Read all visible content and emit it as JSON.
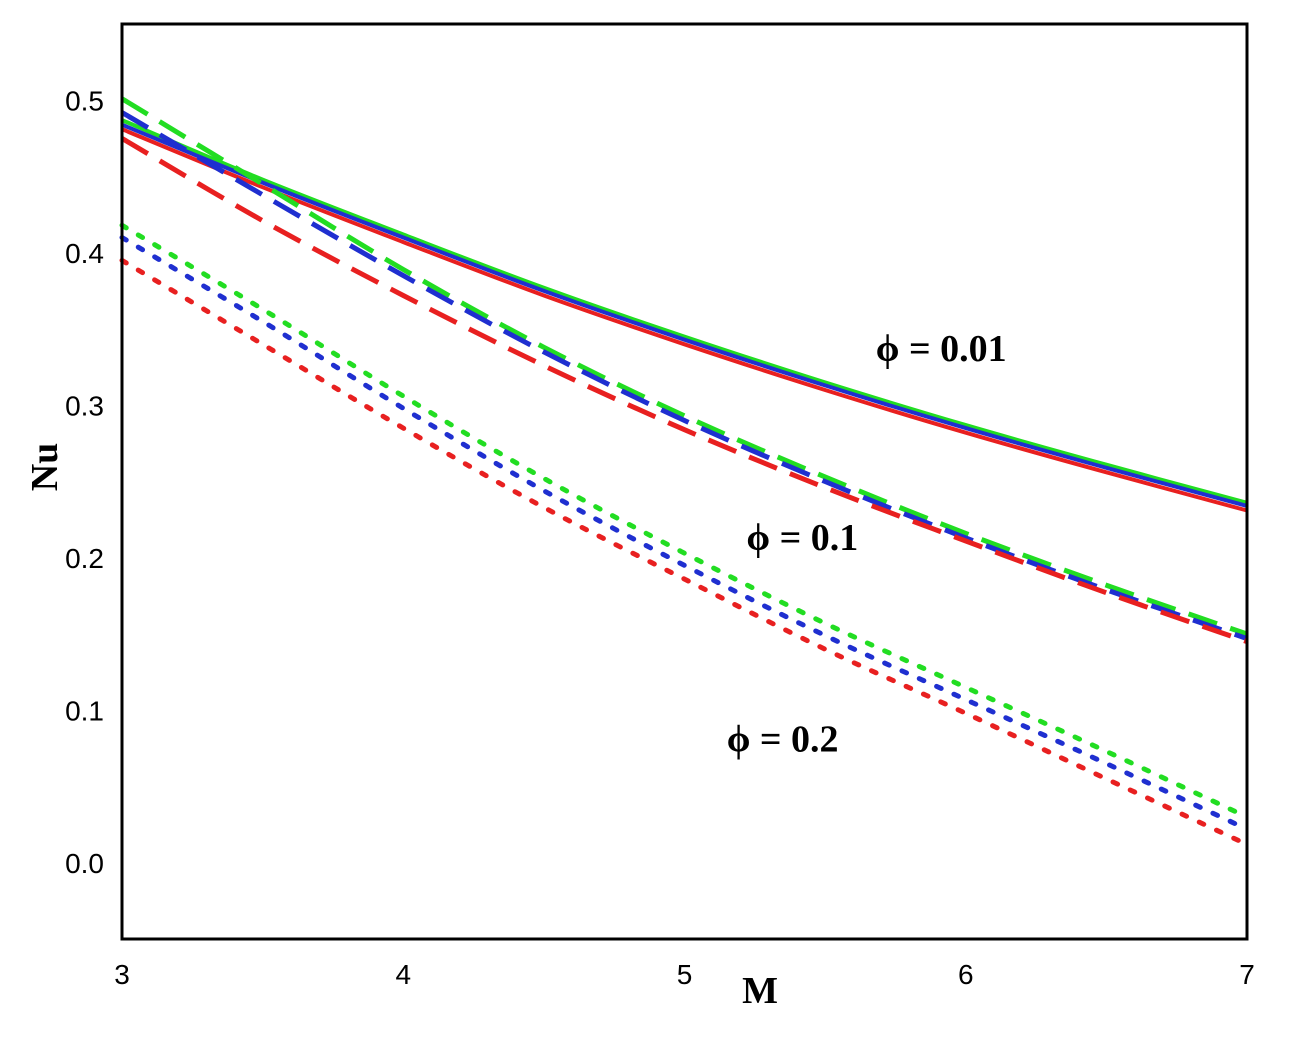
{
  "chart_data": {
    "type": "line",
    "title": "",
    "xlabel": "M",
    "ylabel": "Nu",
    "xlim": [
      3,
      7
    ],
    "ylim": [
      -0.05,
      0.55
    ],
    "x_ticks": [
      "3",
      "4",
      "5",
      "6",
      "7"
    ],
    "y_ticks": [
      "0.0",
      "0.1",
      "0.2",
      "0.3",
      "0.4",
      "0.5"
    ],
    "grid": false,
    "legend": "none",
    "x": [
      3,
      3.5,
      4,
      4.5,
      5,
      5.5,
      6,
      6.5,
      7
    ],
    "series": [
      {
        "group": "0.01",
        "style": "solid",
        "color": "#22dd22",
        "values": [
          0.487,
          0.448,
          0.412,
          0.377,
          0.345,
          0.315,
          0.287,
          0.261,
          0.236
        ]
      },
      {
        "group": "0.01",
        "style": "solid",
        "color": "#1f2fd0",
        "values": [
          0.484,
          0.446,
          0.41,
          0.375,
          0.343,
          0.313,
          0.285,
          0.259,
          0.234
        ]
      },
      {
        "group": "0.01",
        "style": "solid",
        "color": "#e82020",
        "values": [
          0.481,
          0.443,
          0.407,
          0.372,
          0.34,
          0.31,
          0.282,
          0.256,
          0.231
        ]
      },
      {
        "group": "0.1",
        "style": "dashed",
        "color": "#22dd22",
        "values": [
          0.501,
          0.445,
          0.389,
          0.338,
          0.293,
          0.253,
          0.216,
          0.182,
          0.15
        ]
      },
      {
        "group": "0.1",
        "style": "dashed",
        "color": "#1f2fd0",
        "values": [
          0.492,
          0.438,
          0.385,
          0.335,
          0.29,
          0.25,
          0.213,
          0.179,
          0.147
        ]
      },
      {
        "group": "0.1",
        "style": "dashed",
        "color": "#e82020",
        "values": [
          0.475,
          0.421,
          0.372,
          0.326,
          0.284,
          0.246,
          0.211,
          0.177,
          0.145
        ]
      },
      {
        "group": "0.2",
        "style": "dotted",
        "color": "#22dd22",
        "values": [
          0.418,
          0.363,
          0.306,
          0.252,
          0.203,
          0.157,
          0.115,
          0.073,
          0.03
        ]
      },
      {
        "group": "0.2",
        "style": "dotted",
        "color": "#1f2fd0",
        "values": [
          0.41,
          0.355,
          0.298,
          0.244,
          0.195,
          0.149,
          0.107,
          0.065,
          0.022
        ]
      },
      {
        "group": "0.2",
        "style": "dotted",
        "color": "#e82020",
        "values": [
          0.395,
          0.34,
          0.285,
          0.233,
          0.186,
          0.14,
          0.098,
          0.055,
          0.012
        ]
      }
    ],
    "annotations": [
      {
        "text": "ϕ = 0.01",
        "x": 5.68,
        "y": 0.329
      },
      {
        "text": "ϕ = 0.1",
        "x": 5.22,
        "y": 0.205
      },
      {
        "text": "ϕ = 0.2",
        "x": 5.15,
        "y": 0.073
      }
    ]
  }
}
